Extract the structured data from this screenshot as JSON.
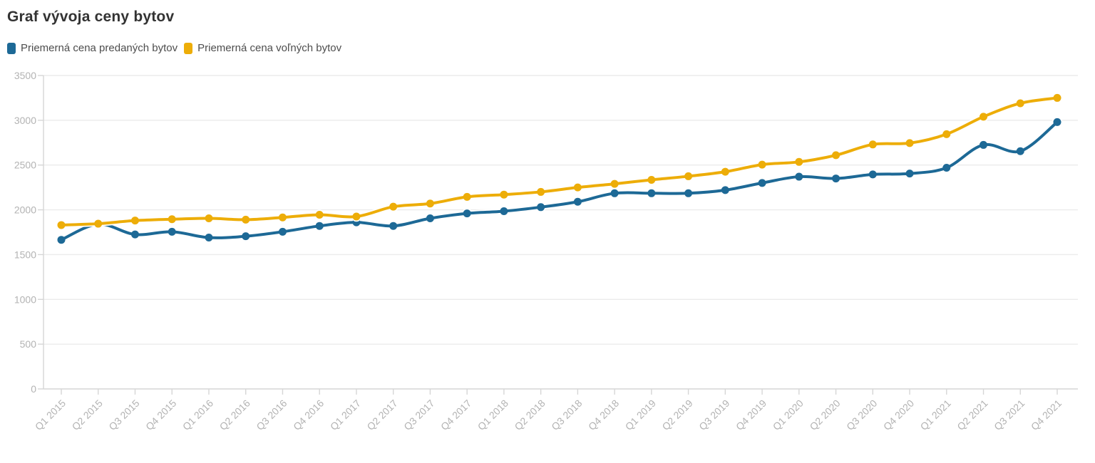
{
  "title": "Graf vývoja ceny bytov",
  "legend": {
    "items": [
      {
        "label": "Priemerná cena predaných bytov",
        "color": "#1d6996"
      },
      {
        "label": "Priemerná cena voľných bytov",
        "color": "#edad08"
      }
    ]
  },
  "chart_data": {
    "type": "line",
    "title": "Graf vývoja ceny bytov",
    "xlabel": "",
    "ylabel": "",
    "categories": [
      "Q1 2015",
      "Q2 2015",
      "Q3 2015",
      "Q4 2015",
      "Q1 2016",
      "Q2 2016",
      "Q3 2016",
      "Q4 2016",
      "Q1 2017",
      "Q2 2017",
      "Q3 2017",
      "Q4 2017",
      "Q1 2018",
      "Q2 2018",
      "Q3 2018",
      "Q4 2018",
      "Q1 2019",
      "Q2 2019",
      "Q3 2019",
      "Q4 2019",
      "Q1 2020",
      "Q2 2020",
      "Q3 2020",
      "Q4 2020",
      "Q1 2021",
      "Q2 2021",
      "Q3 2021",
      "Q4 2021"
    ],
    "series": [
      {
        "name": "Priemerná cena predaných bytov",
        "color": "#1d6996",
        "values": [
          1665,
          1840,
          1725,
          1755,
          1690,
          1705,
          1755,
          1820,
          1860,
          1820,
          1905,
          1960,
          1985,
          2030,
          2090,
          2185,
          2185,
          2185,
          2220,
          2300,
          2370,
          2350,
          2395,
          2405,
          2470,
          2725,
          2655,
          2980
        ]
      },
      {
        "name": "Priemerná cena voľných bytov",
        "color": "#edad08",
        "values": [
          1830,
          1845,
          1880,
          1895,
          1905,
          1890,
          1915,
          1945,
          1925,
          2035,
          2070,
          2145,
          2170,
          2200,
          2250,
          2290,
          2335,
          2375,
          2425,
          2505,
          2535,
          2610,
          2730,
          2745,
          2845,
          3040,
          3190,
          3250
        ]
      }
    ],
    "ylim": [
      0,
      3500
    ],
    "ytick_step": 500,
    "yticks": [
      0,
      500,
      1000,
      1500,
      2000,
      2500,
      3000,
      3500
    ],
    "grid": "horizontal",
    "legend_position": "top-left",
    "x_label_rotation": -45,
    "styles": {
      "grid_color": "#ebebeb",
      "axis_color": "#d6d6d6",
      "tick_label_color": "#b3b3b3",
      "background": "#ffffff",
      "line_width": 4,
      "point_radius": 5.5,
      "casing_color": "#ffffff"
    }
  }
}
